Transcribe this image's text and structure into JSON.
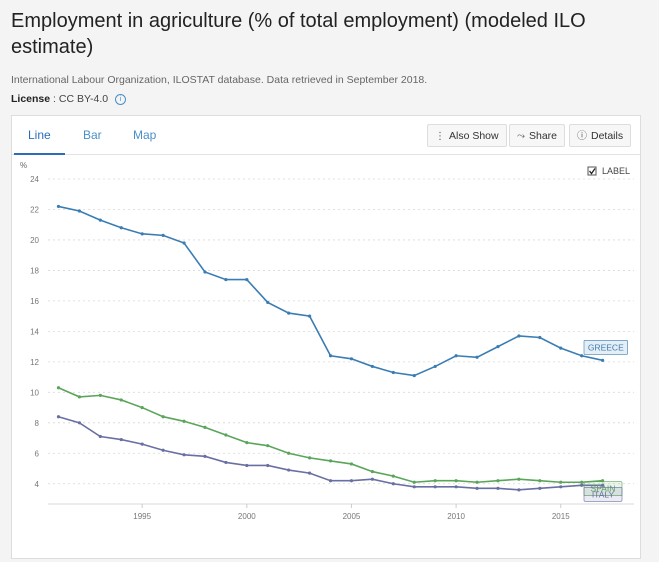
{
  "header": {
    "title": "Employment in agriculture (% of total employment) (modeled ILO estimate)",
    "source": "International Labour Organization, ILOSTAT database. Data retrieved in September 2018.",
    "license_label": "License",
    "license_value": ": CC BY-4.0",
    "info_icon": "info-icon"
  },
  "tabs": [
    {
      "label": "Line",
      "active": true
    },
    {
      "label": "Bar",
      "active": false
    },
    {
      "label": "Map",
      "active": false
    }
  ],
  "toolbar": {
    "also_show": "Also Show",
    "share": "Share",
    "details": "Details",
    "also_show_icon": "vertical-dots-icon",
    "share_icon": "share-icon",
    "details_icon": "info-icon"
  },
  "label_toggle": {
    "label": "LABEL",
    "checked": true
  },
  "chart_data": {
    "type": "line",
    "title": "Employment in agriculture (% of total employment) (modeled ILO estimate)",
    "ylabel": "%",
    "xlabel": "",
    "ylim": [
      3,
      24
    ],
    "xlim": [
      1990.5,
      2018.5
    ],
    "y_ticks": [
      4,
      6,
      8,
      10,
      12,
      14,
      16,
      18,
      20,
      22,
      24
    ],
    "x_ticks": [
      1995,
      2000,
      2005,
      2010,
      2015
    ],
    "grid": true,
    "legend": "end-of-line labels",
    "x": [
      1991,
      1992,
      1993,
      1994,
      1995,
      1996,
      1997,
      1998,
      1999,
      2000,
      2001,
      2002,
      2003,
      2004,
      2005,
      2006,
      2007,
      2008,
      2009,
      2010,
      2011,
      2012,
      2013,
      2014,
      2015,
      2016,
      2017
    ],
    "series": [
      {
        "name": "GREECE",
        "color": "#3a7db4",
        "values": [
          22.2,
          21.9,
          21.3,
          20.8,
          20.4,
          20.3,
          19.8,
          17.9,
          17.4,
          17.4,
          15.9,
          15.2,
          15.0,
          12.4,
          12.2,
          11.7,
          11.3,
          11.1,
          11.7,
          12.4,
          12.3,
          13.0,
          13.7,
          13.6,
          12.9,
          12.4,
          12.1
        ]
      },
      {
        "name": "SPAIN",
        "color": "#5aa55a",
        "values": [
          10.3,
          9.7,
          9.8,
          9.5,
          9.0,
          8.4,
          8.1,
          7.7,
          7.2,
          6.7,
          6.5,
          6.0,
          5.7,
          5.5,
          5.3,
          4.8,
          4.5,
          4.1,
          4.2,
          4.2,
          4.1,
          4.2,
          4.3,
          4.2,
          4.1,
          4.1,
          4.2
        ]
      },
      {
        "name": "ITALY",
        "color": "#6a6fa3",
        "values": [
          8.4,
          8.0,
          7.1,
          6.9,
          6.6,
          6.2,
          5.9,
          5.8,
          5.4,
          5.2,
          5.2,
          4.9,
          4.7,
          4.2,
          4.2,
          4.3,
          4.0,
          3.8,
          3.8,
          3.8,
          3.7,
          3.7,
          3.6,
          3.7,
          3.8,
          3.9,
          3.9
        ]
      }
    ]
  }
}
